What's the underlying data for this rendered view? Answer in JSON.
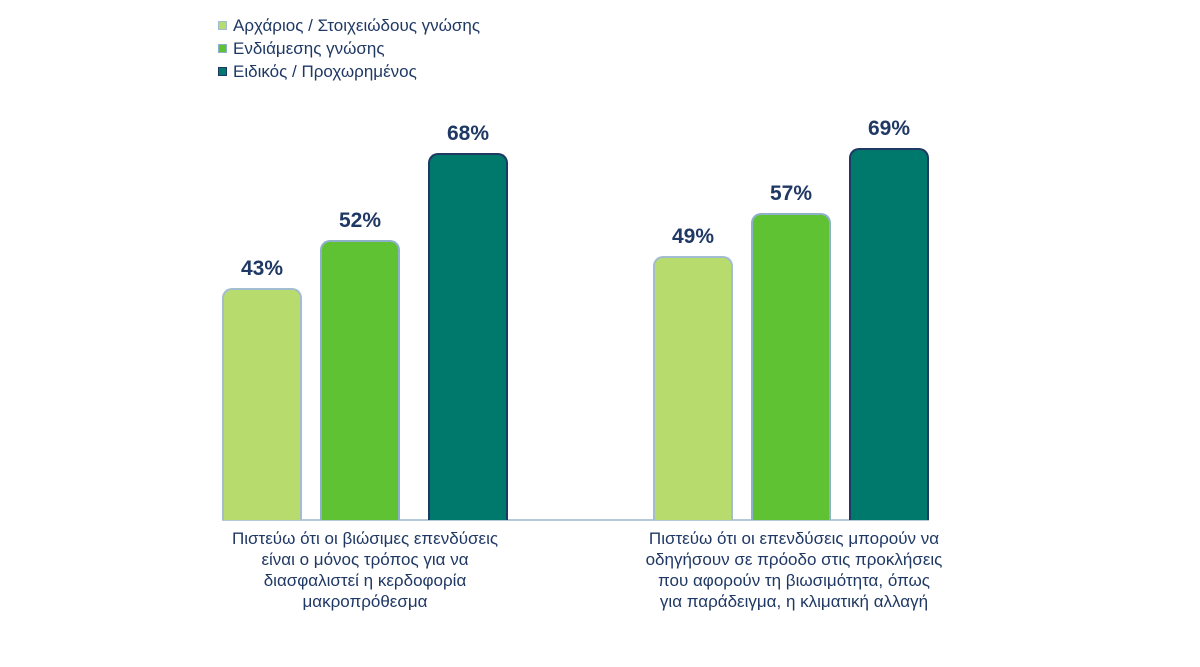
{
  "colors": {
    "text_navy": "#1f3864",
    "axis_line": "#b6c9d8",
    "background": "#ffffff"
  },
  "chart_data": {
    "type": "bar",
    "title": "",
    "xlabel": "",
    "ylabel": "",
    "ylim": [
      0,
      100
    ],
    "grid": false,
    "y_axis_visible": false,
    "legend_position": "top-left",
    "value_suffix": "%",
    "data_labels": true,
    "categories": [
      "Πιστεύω ότι οι βιώσιμες επενδύσεις είναι ο μόνος τρόπος για να διασφαλιστεί η κερδοφορία μακροπρόθεσμα",
      "Πιστεύω ότι οι επενδύσεις μπορούν να οδηγήσουν σε πρόοδο στις προκλήσεις που αφορούν τη βιωσιμότητα, όπως για παράδειγμα, η κλιματική αλλαγή"
    ],
    "categories_display": [
      "Πιστεύω ότι οι βιώσιμες επενδύσεις\nείναι ο μόνος τρόπος για να\nδιασφαλιστεί η κερδοφορία\nμακροπρόθεσμα",
      "Πιστεύω ότι οι επενδύσεις μπορούν να\nοδηγήσουν σε πρόοδο στις προκλήσεις\nπου αφορούν τη βιωσιμότητα, όπως\nγια παράδειγμα, η κλιματική αλλαγή"
    ],
    "series": [
      {
        "name": "Αρχάριος / Στοιχειώδους γνώσης",
        "values": [
          43,
          49
        ],
        "labels": [
          "43%",
          "49%"
        ],
        "color": "#b8db6e",
        "border": "#a3bdd0"
      },
      {
        "name": "Ενδιάμεσης γνώσης",
        "values": [
          52,
          57
        ],
        "labels": [
          "52%",
          "57%"
        ],
        "color": "#5ec232",
        "border": "#8fb0c9"
      },
      {
        "name": "Ειδικός / Προχωρημένος",
        "values": [
          68,
          69
        ],
        "labels": [
          "68%",
          "69%"
        ],
        "color": "#00796d",
        "border": "#1f3864"
      }
    ]
  }
}
